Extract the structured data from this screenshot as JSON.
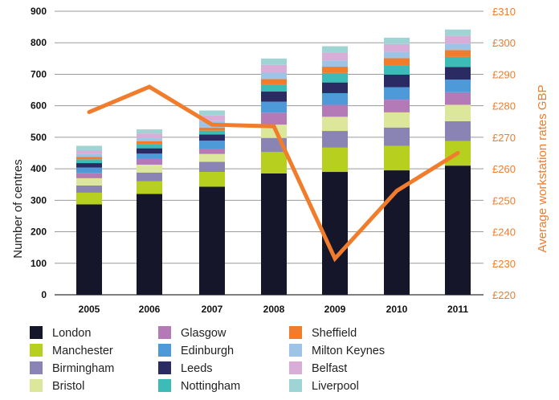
{
  "chart_data": {
    "type": "bar",
    "stacked": true,
    "categories": [
      "2005",
      "2006",
      "2007",
      "2008",
      "2009",
      "2010",
      "2011"
    ],
    "ylabel": "Number of centres",
    "ylabel_right": "Average workstation rates GBP",
    "ylim": [
      0,
      900
    ],
    "yticks": [
      0,
      100,
      200,
      300,
      400,
      500,
      600,
      700,
      800,
      900
    ],
    "ylim_right": [
      220,
      310
    ],
    "yticks_right": [
      "£220",
      "£230",
      "£240",
      "£250",
      "£260",
      "£270",
      "£280",
      "£290",
      "£300",
      "£310"
    ],
    "yticks_right_values": [
      220,
      230,
      240,
      250,
      260,
      270,
      280,
      290,
      300,
      310
    ],
    "grid": true,
    "legend_position": "bottom",
    "series": [
      {
        "name": "London",
        "color": "#16162a",
        "values": [
          287,
          320,
          343,
          385,
          390,
          395,
          410
        ]
      },
      {
        "name": "Manchester",
        "color": "#b7cf1f",
        "values": [
          37,
          40,
          47,
          68,
          77,
          78,
          78
        ]
      },
      {
        "name": "Birmingham",
        "color": "#8a84b4",
        "values": [
          23,
          28,
          32,
          45,
          53,
          58,
          63
        ]
      },
      {
        "name": "Bristol",
        "color": "#dde79b",
        "values": [
          23,
          25,
          25,
          42,
          45,
          48,
          52
        ]
      },
      {
        "name": "Glasgow",
        "color": "#b47ab7",
        "values": [
          17,
          18,
          17,
          38,
          38,
          40,
          40
        ]
      },
      {
        "name": "Edinburgh",
        "color": "#4e9ad8",
        "values": [
          17,
          17,
          25,
          35,
          37,
          40,
          40
        ]
      },
      {
        "name": "Leeds",
        "color": "#2b2b64",
        "values": [
          14,
          17,
          20,
          32,
          34,
          40,
          40
        ]
      },
      {
        "name": "Nottingham",
        "color": "#3bbcb7",
        "values": [
          12,
          12,
          12,
          22,
          30,
          30,
          32
        ]
      },
      {
        "name": "Sheffield",
        "color": "#f07c2c",
        "values": [
          8,
          10,
          10,
          18,
          20,
          22,
          22
        ]
      },
      {
        "name": "Milton Keynes",
        "color": "#9dc4e6",
        "values": [
          9,
          10,
          20,
          20,
          20,
          20,
          20
        ]
      },
      {
        "name": "Belfast",
        "color": "#d8aed8",
        "values": [
          12,
          15,
          18,
          25,
          25,
          25,
          25
        ]
      },
      {
        "name": "Liverpool",
        "color": "#9fd4d4",
        "values": [
          14,
          13,
          16,
          20,
          20,
          20,
          20
        ]
      }
    ],
    "line_series": {
      "name": "Average workstation rates GBP",
      "color": "#f07c2c",
      "axis": "right",
      "values": [
        278,
        286,
        274,
        273.5,
        231.5,
        253,
        265
      ]
    }
  }
}
